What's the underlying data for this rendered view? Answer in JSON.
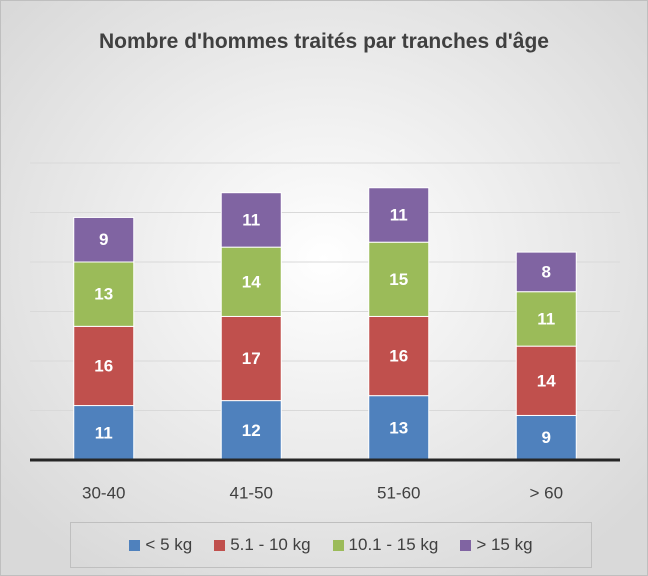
{
  "chart_data": {
    "type": "stacked_bar",
    "title": "Nombre d'hommes traités par tranches d'âge",
    "categories": [
      "30-40",
      "41-50",
      "51-60",
      "> 60"
    ],
    "series": [
      {
        "name": "< 5 kg",
        "color": "#4f81bd",
        "values": [
          11,
          12,
          13,
          9
        ]
      },
      {
        "name": "5.1 - 10 kg",
        "color": "#c0504d",
        "values": [
          16,
          17,
          16,
          14
        ]
      },
      {
        "name": "10.1 - 15 kg",
        "color": "#9bbb59",
        "values": [
          13,
          14,
          15,
          11
        ]
      },
      {
        "name": "> 15 kg",
        "color": "#8064a2",
        "values": [
          9,
          11,
          11,
          8
        ]
      }
    ],
    "ylim": [
      0,
      60
    ],
    "yticks": [
      0,
      10,
      20,
      30,
      40,
      50,
      60
    ],
    "grid": true,
    "legend": "bottom"
  }
}
